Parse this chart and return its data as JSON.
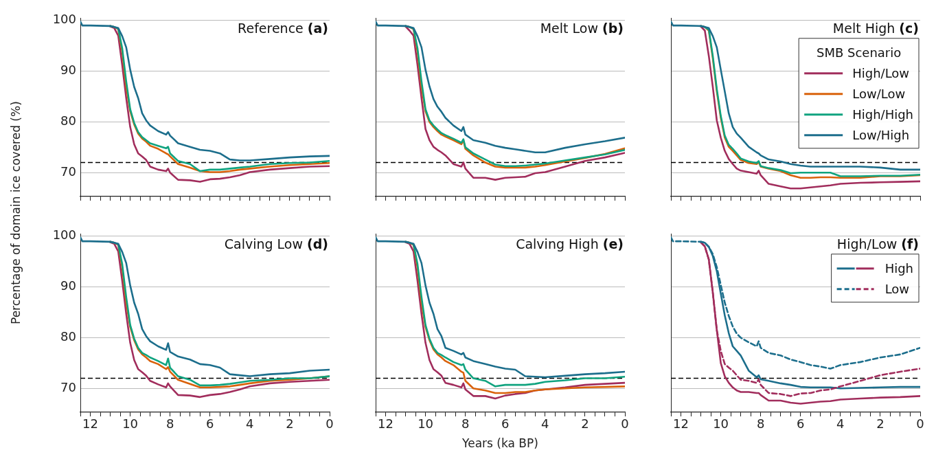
{
  "chart_data": [
    {
      "type": "line",
      "title": "Reference (a)",
      "ylabel": "Percentage of domain ice covered (%)",
      "xlim": [
        12.5,
        0
      ],
      "ylim": [
        65.3,
        100.4
      ],
      "xticks": [
        {
          "value": 12.5,
          "label": null
        },
        12,
        {
          "value": 11.5,
          "label": null
        },
        {
          "value": 11,
          "label": null
        },
        {
          "value": 10.5,
          "label": null
        },
        10,
        {
          "value": 9.5,
          "label": null
        },
        {
          "value": 9,
          "label": null
        },
        {
          "value": 8.5,
          "label": null
        },
        8,
        {
          "value": 7.5,
          "label": null
        },
        {
          "value": 7,
          "label": null
        },
        {
          "value": 6.5,
          "label": null
        },
        6,
        {
          "value": 5.5,
          "label": null
        },
        {
          "value": 5,
          "label": null
        },
        {
          "value": 4.5,
          "label": null
        },
        4,
        {
          "value": 3.5,
          "label": null
        },
        {
          "value": 3,
          "label": null
        },
        {
          "value": 2.5,
          "label": null
        },
        2,
        {
          "value": 1.5,
          "label": null
        },
        {
          "value": 1,
          "label": null
        },
        {
          "value": 0.5,
          "label": null
        },
        0
      ],
      "yticks": [
        70,
        80,
        90,
        100
      ],
      "grid": "y",
      "tick_labels": "y",
      "ref_lines": [
        {
          "axis": "y",
          "value": 72,
          "color": "#000000",
          "line_style": "dashed"
        }
      ],
      "x": [
        12.5,
        12.4,
        12,
        11,
        10.8,
        10.6,
        10.4,
        10.2,
        10,
        9.8,
        9.6,
        9.4,
        9.2,
        9,
        8.6,
        8.2,
        8.1,
        8,
        7.6,
        7,
        6.5,
        6,
        5.5,
        5,
        4.5,
        4,
        3,
        2,
        1,
        0
      ],
      "series": [
        {
          "color": "#a12d5c",
          "values": [
            null,
            null,
            null,
            98.8,
            98.5,
            97,
            91.2,
            84.7,
            79,
            75.6,
            73.8,
            73.2,
            72.5,
            71.2,
            70.6,
            70.3,
            70.8,
            70,
            68.6,
            68.5,
            68.2,
            68.7,
            68.8,
            69.1,
            69.5,
            70.1,
            70.6,
            70.9,
            71.2,
            71.3
          ]
        },
        {
          "color": "#d9620b",
          "values": [
            null,
            null,
            null,
            98.9,
            98.7,
            98.3,
            93.8,
            86.9,
            82.1,
            79.5,
            77.7,
            76.7,
            76.1,
            75.3,
            74.7,
            73.8,
            73.6,
            73.2,
            71.7,
            71,
            70.3,
            70.1,
            70.1,
            70.3,
            70.6,
            70.8,
            71.2,
            71.5,
            71.7,
            71.9
          ]
        },
        {
          "color": "#10a37f",
          "values": [
            null,
            null,
            null,
            98.9,
            98.7,
            98.4,
            94.5,
            88,
            82.5,
            79.8,
            78,
            77,
            76.4,
            75.8,
            75.3,
            74.8,
            75.1,
            73.8,
            72.3,
            71.7,
            70.3,
            70.6,
            70.6,
            70.8,
            71,
            71.2,
            71.7,
            71.9,
            72,
            72.3
          ]
        },
        {
          "color": "#1c6e8c",
          "values": [
            99.8,
            99,
            99,
            98.9,
            98.7,
            98.5,
            96.9,
            94.7,
            90.3,
            86.9,
            84.7,
            81.7,
            80.3,
            79.3,
            78.2,
            77.5,
            78,
            77.3,
            75.8,
            75.1,
            74.5,
            74.3,
            73.8,
            72.6,
            72.4,
            72.4,
            72.7,
            73,
            73.2,
            73.3
          ]
        }
      ]
    },
    {
      "type": "line",
      "title": "Melt Low (b)",
      "xlim": [
        12.5,
        0
      ],
      "ylim": [
        65.3,
        100.4
      ],
      "xticks": [
        {
          "value": 12.5,
          "label": null
        },
        12,
        {
          "value": 11.5,
          "label": null
        },
        {
          "value": 11,
          "label": null
        },
        {
          "value": 10.5,
          "label": null
        },
        10,
        {
          "value": 9.5,
          "label": null
        },
        {
          "value": 9,
          "label": null
        },
        {
          "value": 8.5,
          "label": null
        },
        8,
        {
          "value": 7.5,
          "label": null
        },
        {
          "value": 7,
          "label": null
        },
        {
          "value": 6.5,
          "label": null
        },
        6,
        {
          "value": 5.5,
          "label": null
        },
        {
          "value": 5,
          "label": null
        },
        {
          "value": 4.5,
          "label": null
        },
        4,
        {
          "value": 3.5,
          "label": null
        },
        {
          "value": 3,
          "label": null
        },
        {
          "value": 2.5,
          "label": null
        },
        2,
        {
          "value": 1.5,
          "label": null
        },
        {
          "value": 1,
          "label": null
        },
        {
          "value": 0.5,
          "label": null
        },
        0
      ],
      "yticks": [
        70,
        80,
        90,
        100
      ],
      "grid": "y",
      "tick_labels": false,
      "ref_lines": [
        {
          "axis": "y",
          "value": 72,
          "color": "#000000",
          "line_style": "dashed"
        }
      ],
      "x": [
        12.5,
        12.4,
        12,
        11,
        10.8,
        10.6,
        10.4,
        10.2,
        10,
        9.8,
        9.6,
        9.4,
        9.2,
        9,
        8.6,
        8.2,
        8.1,
        8,
        7.6,
        7,
        6.5,
        6,
        5.5,
        5,
        4.5,
        4,
        3,
        2,
        1,
        0
      ],
      "series": [
        {
          "color": "#a12d5c",
          "values": [
            null,
            null,
            null,
            98.8,
            98,
            97,
            91.2,
            84.7,
            78.6,
            76.4,
            75.1,
            74.5,
            74,
            73.4,
            71.7,
            71.2,
            72,
            70.8,
            69,
            69,
            68.6,
            69,
            69.1,
            69.2,
            69.9,
            70.1,
            71.2,
            72.3,
            73,
            73.9
          ]
        },
        {
          "color": "#d9620b",
          "values": [
            null,
            null,
            null,
            98.9,
            98.7,
            98.3,
            93.8,
            86.9,
            82.1,
            80,
            79,
            78.2,
            77.5,
            77.1,
            76.4,
            75.6,
            76.4,
            74.7,
            73.4,
            72,
            71.2,
            71,
            71,
            71,
            71.2,
            71.5,
            72.2,
            72.9,
            73.7,
            74.8
          ]
        },
        {
          "color": "#10a37f",
          "values": [
            null,
            null,
            null,
            98.9,
            98.7,
            98.4,
            94.5,
            88,
            82.5,
            80.3,
            79.3,
            78.5,
            77.8,
            77.4,
            76.7,
            75.9,
            76.6,
            75,
            73.8,
            72.6,
            71.6,
            71.3,
            71.3,
            71.4,
            71.6,
            71.8,
            72.4,
            73,
            73.6,
            74.5
          ]
        },
        {
          "color": "#1c6e8c",
          "values": [
            99.8,
            99,
            99,
            98.9,
            98.7,
            98.5,
            96.9,
            94.7,
            90.3,
            87,
            84.5,
            83,
            82,
            80.8,
            79.3,
            78.2,
            79,
            77.5,
            76.4,
            75.9,
            75.3,
            74.9,
            74.6,
            74.3,
            74,
            74,
            74.9,
            75.6,
            76.2,
            76.9
          ]
        }
      ]
    },
    {
      "type": "line",
      "title": "Melt High (c)",
      "legend_title": "SMB Scenario",
      "legend": "top right",
      "xlim": [
        12.5,
        0
      ],
      "ylim": [
        65.3,
        100.4
      ],
      "xticks": [
        {
          "value": 12.5,
          "label": null
        },
        12,
        {
          "value": 11.5,
          "label": null
        },
        {
          "value": 11,
          "label": null
        },
        {
          "value": 10.5,
          "label": null
        },
        10,
        {
          "value": 9.5,
          "label": null
        },
        {
          "value": 9,
          "label": null
        },
        {
          "value": 8.5,
          "label": null
        },
        8,
        {
          "value": 7.5,
          "label": null
        },
        {
          "value": 7,
          "label": null
        },
        {
          "value": 6.5,
          "label": null
        },
        6,
        {
          "value": 5.5,
          "label": null
        },
        {
          "value": 5,
          "label": null
        },
        {
          "value": 4.5,
          "label": null
        },
        4,
        {
          "value": 3.5,
          "label": null
        },
        {
          "value": 3,
          "label": null
        },
        {
          "value": 2.5,
          "label": null
        },
        2,
        {
          "value": 1.5,
          "label": null
        },
        {
          "value": 1,
          "label": null
        },
        {
          "value": 0.5,
          "label": null
        },
        0
      ],
      "yticks": [
        70,
        80,
        90,
        100
      ],
      "grid": "y",
      "tick_labels": false,
      "ref_lines": [
        {
          "axis": "y",
          "value": 72,
          "color": "#000000",
          "line_style": "dashed"
        }
      ],
      "x": [
        12.5,
        12.4,
        12,
        11,
        10.8,
        10.6,
        10.4,
        10.2,
        10,
        9.8,
        9.6,
        9.4,
        9.2,
        9,
        8.6,
        8.2,
        8.1,
        8,
        7.6,
        7,
        6.5,
        6,
        5.5,
        5,
        4.5,
        4,
        3,
        2,
        1,
        0
      ],
      "series": [
        {
          "name": "High/Low",
          "color": "#a12d5c",
          "values": [
            null,
            null,
            null,
            98.8,
            98,
            93,
            86.9,
            80.3,
            76.9,
            74.3,
            72.7,
            71.7,
            70.8,
            70.4,
            70.1,
            69.8,
            70.4,
            69.5,
            67.8,
            67.3,
            66.9,
            66.9,
            67.1,
            67.3,
            67.5,
            67.8,
            68,
            68.1,
            68.2,
            68.3
          ]
        },
        {
          "name": "Low/Low",
          "color": "#d9620b",
          "values": [
            null,
            null,
            null,
            98.9,
            98.7,
            98,
            92.5,
            86,
            80.8,
            76.9,
            75.1,
            74.3,
            73.4,
            72.5,
            71.9,
            71.7,
            72.1,
            71.2,
            70.8,
            70.3,
            69.5,
            69,
            69,
            69.1,
            69.1,
            69,
            69,
            69.3,
            69.3,
            69.5
          ]
        },
        {
          "name": "High/High",
          "color": "#10a37f",
          "values": [
            null,
            null,
            null,
            98.9,
            98.7,
            98.2,
            93,
            86.5,
            81.2,
            77.3,
            75.5,
            74.7,
            73.8,
            72.8,
            72.2,
            71.9,
            72.3,
            71.3,
            70.9,
            70.5,
            69.9,
            70,
            70,
            70,
            70,
            69.3,
            69.3,
            69.4,
            69.4,
            69.6
          ]
        },
        {
          "name": "Low/High",
          "color": "#1c6e8c",
          "values": [
            99.8,
            99,
            99,
            98.9,
            98.7,
            98.5,
            96.9,
            94.7,
            90.3,
            86,
            81.7,
            79,
            77.7,
            76.9,
            75.1,
            74,
            73.8,
            73.4,
            72.6,
            72.2,
            71.7,
            71.4,
            71.2,
            71.2,
            71.2,
            71.2,
            71.2,
            71,
            70.6,
            70.6
          ]
        }
      ]
    },
    {
      "type": "line",
      "title": "Calving Low (d)",
      "xlim": [
        12.5,
        0
      ],
      "ylim": [
        65.3,
        100.4
      ],
      "xticks": [
        {
          "value": 12.5,
          "label": null
        },
        12,
        {
          "value": 11.5,
          "label": null
        },
        {
          "value": 11,
          "label": null
        },
        {
          "value": 10.5,
          "label": null
        },
        10,
        {
          "value": 9.5,
          "label": null
        },
        {
          "value": 9,
          "label": null
        },
        {
          "value": 8.5,
          "label": null
        },
        8,
        {
          "value": 7.5,
          "label": null
        },
        {
          "value": 7,
          "label": null
        },
        {
          "value": 6.5,
          "label": null
        },
        6,
        {
          "value": 5.5,
          "label": null
        },
        {
          "value": 5,
          "label": null
        },
        {
          "value": 4.5,
          "label": null
        },
        4,
        {
          "value": 3.5,
          "label": null
        },
        {
          "value": 3,
          "label": null
        },
        {
          "value": 2.5,
          "label": null
        },
        2,
        {
          "value": 1.5,
          "label": null
        },
        {
          "value": 1,
          "label": null
        },
        {
          "value": 0.5,
          "label": null
        },
        0
      ],
      "yticks": [
        70,
        80,
        90,
        100
      ],
      "grid": "y",
      "ref_lines": [
        {
          "axis": "y",
          "value": 72,
          "color": "#000000",
          "line_style": "dashed"
        }
      ],
      "x": [
        12.5,
        12.4,
        12,
        11,
        10.8,
        10.6,
        10.4,
        10.2,
        10,
        9.8,
        9.6,
        9.4,
        9.2,
        9,
        8.6,
        8.2,
        8.1,
        8,
        7.6,
        7,
        6.5,
        6,
        5.5,
        5,
        4.5,
        4,
        3,
        2,
        1,
        0
      ],
      "series": [
        {
          "color": "#a12d5c",
          "values": [
            null,
            null,
            null,
            98.8,
            98.5,
            97,
            91.2,
            84.7,
            79,
            75.6,
            73.8,
            73.2,
            72.5,
            71.5,
            70.8,
            70.2,
            71,
            70.4,
            68.7,
            68.6,
            68.3,
            68.7,
            68.9,
            69.3,
            69.8,
            70.4,
            71,
            71.3,
            71.5,
            71.7
          ]
        },
        {
          "color": "#d9620b",
          "values": [
            null,
            null,
            null,
            98.9,
            98.7,
            98.3,
            93.8,
            86.9,
            82.1,
            79.5,
            77.7,
            76.7,
            76.1,
            75.4,
            74.8,
            73.8,
            74.2,
            73.3,
            71.7,
            70.9,
            70.2,
            70.2,
            70.3,
            70.4,
            70.7,
            71,
            71.5,
            71.7,
            72,
            72.4
          ]
        },
        {
          "color": "#10a37f",
          "values": [
            null,
            null,
            null,
            98.9,
            98.7,
            98.4,
            94.5,
            88,
            82.5,
            79.8,
            78,
            77,
            76.6,
            76.1,
            75.4,
            74.6,
            75.9,
            74.1,
            72.4,
            71.7,
            70.6,
            70.6,
            70.7,
            70.9,
            71.2,
            71.5,
            71.7,
            72,
            72,
            72.4
          ]
        },
        {
          "color": "#1c6e8c",
          "values": [
            99.8,
            99,
            99,
            98.9,
            98.7,
            98.5,
            96.9,
            94.7,
            90.3,
            86.9,
            84.7,
            81.7,
            80.3,
            79.3,
            78.3,
            77.6,
            78.9,
            77.2,
            76.3,
            75.7,
            74.8,
            74.6,
            74.1,
            72.8,
            72.6,
            72.4,
            72.8,
            73,
            73.5,
            73.7
          ]
        }
      ]
    },
    {
      "type": "line",
      "title": "Calving High (e)",
      "xlabel": "Years (ka BP)",
      "xlim": [
        12.5,
        0
      ],
      "ylim": [
        65.3,
        100.4
      ],
      "xticks": [
        {
          "value": 12.5,
          "label": null
        },
        12,
        {
          "value": 11.5,
          "label": null
        },
        {
          "value": 11,
          "label": null
        },
        {
          "value": 10.5,
          "label": null
        },
        10,
        {
          "value": 9.5,
          "label": null
        },
        {
          "value": 9,
          "label": null
        },
        {
          "value": 8.5,
          "label": null
        },
        8,
        {
          "value": 7.5,
          "label": null
        },
        {
          "value": 7,
          "label": null
        },
        {
          "value": 6.5,
          "label": null
        },
        6,
        {
          "value": 5.5,
          "label": null
        },
        {
          "value": 5,
          "label": null
        },
        {
          "value": 4.5,
          "label": null
        },
        4,
        {
          "value": 3.5,
          "label": null
        },
        {
          "value": 3,
          "label": null
        },
        {
          "value": 2.5,
          "label": null
        },
        2,
        {
          "value": 1.5,
          "label": null
        },
        {
          "value": 1,
          "label": null
        },
        {
          "value": 0.5,
          "label": null
        },
        0
      ],
      "yticks": [
        70,
        80,
        90,
        100
      ],
      "grid": "y",
      "tick_labels": "x",
      "ref_lines": [
        {
          "axis": "y",
          "value": 72,
          "color": "#000000",
          "line_style": "dashed"
        }
      ],
      "x": [
        12.5,
        12.4,
        12,
        11,
        10.8,
        10.6,
        10.4,
        10.2,
        10,
        9.8,
        9.6,
        9.4,
        9.2,
        9,
        8.6,
        8.2,
        8.1,
        8,
        7.6,
        7,
        6.5,
        6,
        5.5,
        5,
        4.5,
        4,
        3,
        2,
        1,
        0
      ],
      "series": [
        {
          "color": "#a12d5c",
          "values": [
            null,
            null,
            null,
            98.8,
            98.5,
            97,
            91.2,
            84.7,
            79,
            75.6,
            73.8,
            73.2,
            72.5,
            71.1,
            70.7,
            70.2,
            71,
            69.8,
            68.5,
            68.5,
            68,
            68.6,
            68.9,
            69.1,
            69.6,
            69.8,
            70.2,
            70.7,
            70.9,
            71.1
          ]
        },
        {
          "color": "#d9620b",
          "values": [
            null,
            null,
            null,
            98.9,
            98.7,
            98.3,
            93.8,
            86.9,
            82.1,
            79.5,
            77.7,
            76.7,
            76.1,
            75.4,
            74.6,
            73.3,
            73.1,
            71.5,
            70,
            69.6,
            69.1,
            69.1,
            69.3,
            69.3,
            69.6,
            69.8,
            70,
            70.2,
            70.3,
            70.4
          ]
        },
        {
          "color": "#10a37f",
          "values": [
            null,
            null,
            null,
            98.9,
            98.7,
            98.4,
            94.5,
            88,
            82.5,
            79.8,
            78,
            77,
            76.6,
            76.1,
            75.2,
            74.6,
            74.8,
            73.7,
            72,
            71.5,
            70.4,
            70.7,
            70.7,
            70.7,
            70.9,
            71.3,
            71.6,
            72,
            72,
            72.3
          ]
        },
        {
          "color": "#1c6e8c",
          "values": [
            99.8,
            99,
            99,
            98.9,
            98.7,
            98.5,
            96.9,
            94.7,
            90.3,
            86.9,
            84.7,
            81.7,
            80.3,
            78,
            77.4,
            76.7,
            77,
            76.1,
            75.4,
            74.8,
            74.3,
            73.9,
            73.7,
            72.4,
            72.3,
            72.2,
            72.5,
            72.8,
            73,
            73.3
          ]
        }
      ]
    },
    {
      "type": "line",
      "title": "High/Low (f)",
      "legend": "top right",
      "xlim": [
        12.5,
        0
      ],
      "ylim": [
        65.3,
        100.4
      ],
      "xticks": [
        {
          "value": 12.5,
          "label": null
        },
        12,
        {
          "value": 11.5,
          "label": null
        },
        {
          "value": 11,
          "label": null
        },
        {
          "value": 10.5,
          "label": null
        },
        10,
        {
          "value": 9.5,
          "label": null
        },
        {
          "value": 9,
          "label": null
        },
        {
          "value": 8.5,
          "label": null
        },
        8,
        {
          "value": 7.5,
          "label": null
        },
        {
          "value": 7,
          "label": null
        },
        {
          "value": 6.5,
          "label": null
        },
        6,
        {
          "value": 5.5,
          "label": null
        },
        {
          "value": 5,
          "label": null
        },
        {
          "value": 4.5,
          "label": null
        },
        4,
        {
          "value": 3.5,
          "label": null
        },
        {
          "value": 3,
          "label": null
        },
        {
          "value": 2.5,
          "label": null
        },
        2,
        {
          "value": 1.5,
          "label": null
        },
        {
          "value": 1,
          "label": null
        },
        {
          "value": 0.5,
          "label": null
        },
        0
      ],
      "yticks": [
        70,
        80,
        90,
        100
      ],
      "grid": "y",
      "tick_labels": "x",
      "ref_lines": [
        {
          "axis": "y",
          "value": 72,
          "color": "#000000",
          "line_style": "dashed"
        }
      ],
      "x": [
        12.5,
        12.4,
        12,
        11,
        10.8,
        10.6,
        10.4,
        10.2,
        10,
        9.8,
        9.6,
        9.4,
        9.2,
        9,
        8.6,
        8.2,
        8.1,
        8,
        7.6,
        7,
        6.5,
        6,
        5.5,
        5,
        4.5,
        4,
        3,
        2,
        1,
        0
      ],
      "series": [
        {
          "name": "High",
          "color": "#a12d5c",
          "line_style": "solid",
          "values": [
            null,
            null,
            null,
            98.8,
            98,
            95.4,
            88.9,
            81.5,
            75,
            72.4,
            71.1,
            70.2,
            69.6,
            69.3,
            69.3,
            69.1,
            69.1,
            68.7,
            67.6,
            67.6,
            67.2,
            67,
            67.2,
            67.4,
            67.5,
            67.8,
            68,
            68.2,
            68.3,
            68.5
          ]
        },
        {
          "color": "#1c6e8c",
          "line_style": "solid",
          "values": [
            null,
            null,
            null,
            98.9,
            98.7,
            97.9,
            96.1,
            93.1,
            88.7,
            84.4,
            80.9,
            78.3,
            77.4,
            76.5,
            73.5,
            72.2,
            72.6,
            71.8,
            71.5,
            71,
            70.7,
            70.3,
            70.2,
            70.2,
            70.2,
            70,
            70.1,
            70.2,
            70.3,
            70.3
          ]
        },
        {
          "name": "Low",
          "color": "#a12d5c",
          "line_style": "dashed",
          "values": [
            null,
            null,
            null,
            98.8,
            98,
            95.4,
            88.9,
            81.5,
            77.4,
            74.8,
            74.1,
            73.5,
            72.6,
            71.7,
            71.5,
            71.1,
            71.8,
            70.7,
            69.1,
            68.9,
            68.5,
            69,
            69.1,
            69.6,
            69.8,
            70.4,
            71.5,
            72.6,
            73.3,
            73.9
          ]
        },
        {
          "color": "#1c6e8c",
          "line_style": "dashed",
          "values": [
            99.8,
            99,
            99,
            98.9,
            98.7,
            97.9,
            96.5,
            93.9,
            90.4,
            86.9,
            84.3,
            82.2,
            80.8,
            80,
            79.1,
            78.3,
            79.3,
            78,
            77,
            76.5,
            75.7,
            75.2,
            74.6,
            74.3,
            73.9,
            74.6,
            75.2,
            76.1,
            76.7,
            78
          ]
        }
      ]
    }
  ]
}
